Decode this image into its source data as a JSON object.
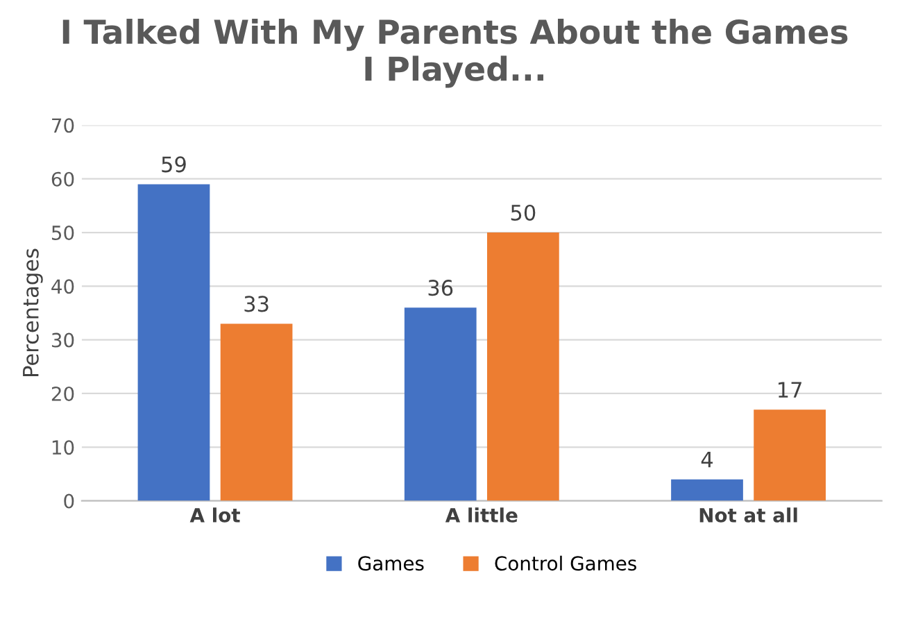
{
  "chart_data": {
    "type": "bar",
    "title": "I Talked With My Parents About the Games\nI Played...",
    "ylabel": "Percentages",
    "categories": [
      "A lot",
      "A little",
      "Not at all"
    ],
    "series": [
      {
        "name": "Games",
        "color": "#4472c4",
        "values": [
          59,
          36,
          4
        ]
      },
      {
        "name": "Control Games",
        "color": "#ed7d31",
        "values": [
          33,
          50,
          17
        ]
      }
    ],
    "ylim": [
      0,
      70
    ],
    "yticks": [
      0,
      10,
      20,
      30,
      40,
      50,
      60,
      70
    ],
    "grid": "y",
    "legend": "bottom",
    "data_labels": true
  }
}
